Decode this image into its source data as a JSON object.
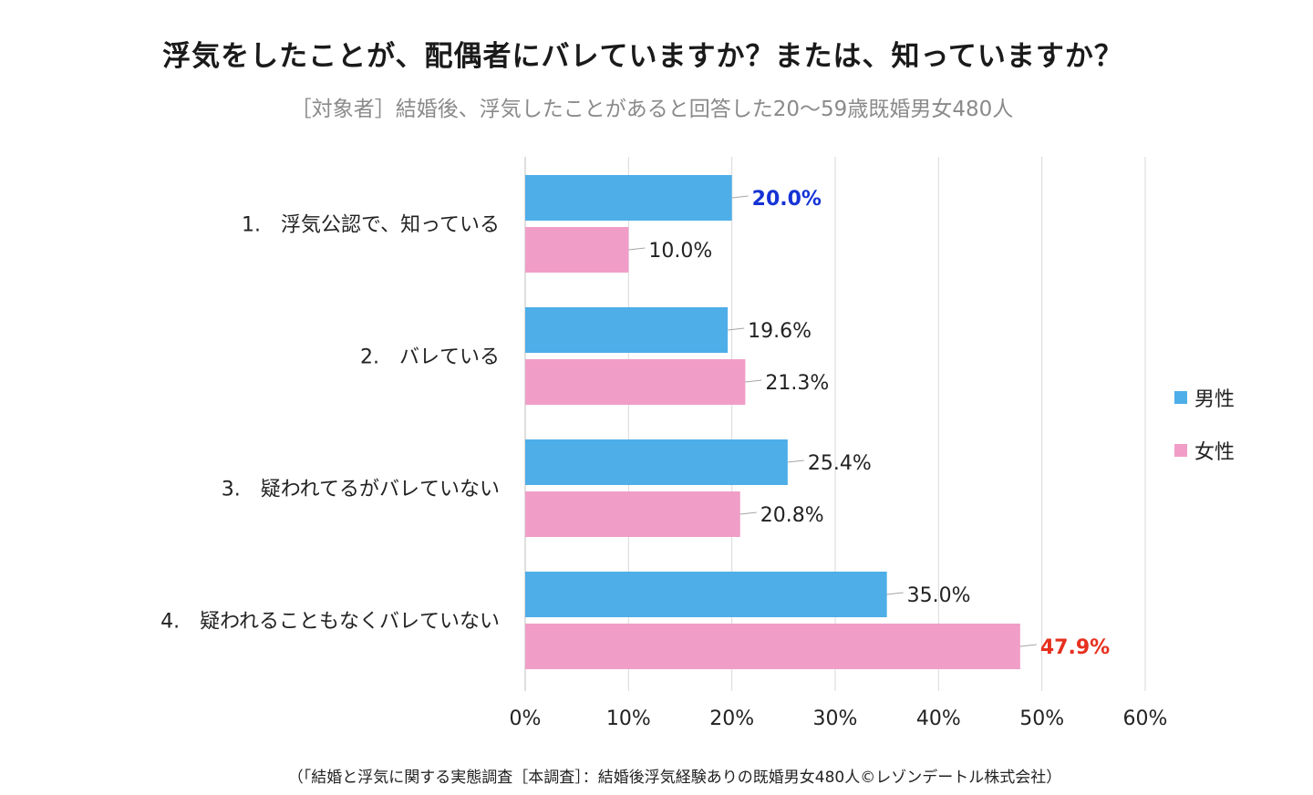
{
  "title": "浮気をしたことが、配偶者にバレていますか？または、知っていますか？",
  "subtitle": "［対象者］結婚後、浮気したことがあると回答した20〜59歳既婚男女480人",
  "footer": "（「結婚と浮気に関する実態調査［本調査］：結婚後浮気経験ありの既婚男女480人©レゾンデートル株式会社）",
  "chart_data": {
    "type": "bar",
    "orientation": "horizontal",
    "categories": [
      "1.　浮気公認で、知っている",
      "2.　バレている",
      "3.　疑われてるがバレていない",
      "4.　疑われることもなくバレていない"
    ],
    "series": [
      {
        "name": "男性",
        "color": "#4eaee8",
        "values": [
          20.0,
          19.6,
          25.4,
          35.0
        ],
        "labels": [
          "20.0%",
          "19.6%",
          "25.4%",
          "35.0%"
        ]
      },
      {
        "name": "女性",
        "color": "#f09ec8",
        "values": [
          10.0,
          21.3,
          20.8,
          47.9
        ],
        "labels": [
          "10.0%",
          "21.3%",
          "20.8%",
          "47.9%"
        ]
      }
    ],
    "highlights": [
      {
        "series": 0,
        "index": 0,
        "color": "#1533d6",
        "bold": true
      },
      {
        "series": 1,
        "index": 3,
        "color": "#e6301e",
        "bold": true
      }
    ],
    "xlim": [
      0,
      60
    ],
    "xticks": [
      "0%",
      "10%",
      "20%",
      "30%",
      "40%",
      "50%",
      "60%"
    ],
    "grid": true,
    "legend_position": "right"
  }
}
